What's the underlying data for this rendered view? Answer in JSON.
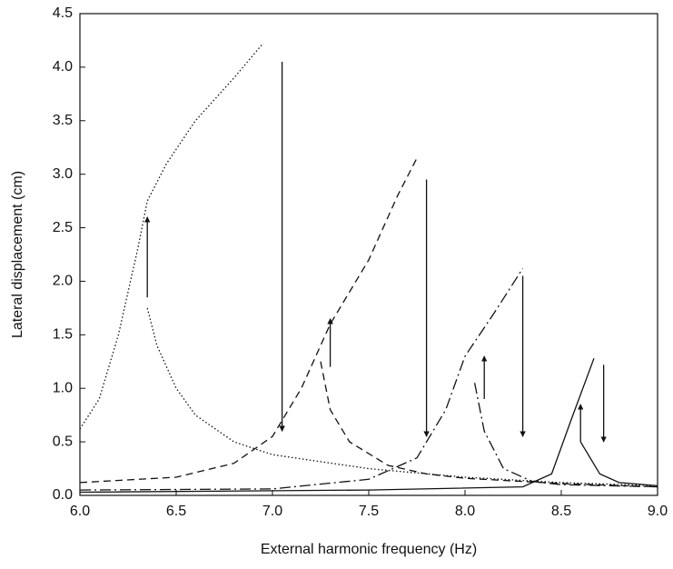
{
  "chart_data": {
    "type": "line",
    "x_label": "External harmonic frequency (Hz)",
    "y_label": "Lateral displacement (cm)",
    "xlim": [
      6.0,
      9.0
    ],
    "ylim": [
      0.0,
      4.5
    ],
    "xticks": [
      {
        "value": 6.0,
        "label": "6.0"
      },
      {
        "value": 6.5,
        "label": "6.5"
      },
      {
        "value": 7.0,
        "label": "7.0"
      },
      {
        "value": 7.5,
        "label": "7.5"
      },
      {
        "value": 8.0,
        "label": "8.0"
      },
      {
        "value": 8.5,
        "label": "8.5"
      },
      {
        "value": 9.0,
        "label": "9.0"
      }
    ],
    "yticks": [
      {
        "value": 0.0,
        "label": "0.0"
      },
      {
        "value": 0.5,
        "label": "0.5"
      },
      {
        "value": 1.0,
        "label": "1.0"
      },
      {
        "value": 1.5,
        "label": "1.5"
      },
      {
        "value": 2.0,
        "label": "2.0"
      },
      {
        "value": 2.5,
        "label": "2.5"
      },
      {
        "value": 3.0,
        "label": "3.0"
      },
      {
        "value": 3.5,
        "label": "3.5"
      },
      {
        "value": 4.0,
        "label": "4.0"
      },
      {
        "value": 4.5,
        "label": "4.5"
      }
    ],
    "series": [
      {
        "color": "#111111",
        "dash": "1.5,2.5",
        "x": [
          6.0,
          6.1,
          6.2,
          6.3,
          6.35,
          6.45,
          6.6,
          6.8,
          6.95
        ],
        "values": [
          0.62,
          0.9,
          1.5,
          2.3,
          2.75,
          3.1,
          3.5,
          3.9,
          4.22
        ]
      },
      {
        "color": "#111111",
        "dash": "1.5,2.5",
        "x": [
          6.35,
          6.4,
          6.5,
          6.6,
          6.8,
          7.0,
          7.5,
          8.0,
          8.5,
          9.0
        ],
        "values": [
          1.75,
          1.4,
          1.0,
          0.75,
          0.5,
          0.38,
          0.25,
          0.17,
          0.12,
          0.09
        ]
      },
      {
        "color": "#111111",
        "dash": "8,5",
        "x": [
          6.0,
          6.5,
          6.8,
          7.0,
          7.15,
          7.3,
          7.5,
          7.65,
          7.75
        ],
        "values": [
          0.12,
          0.17,
          0.3,
          0.55,
          1.0,
          1.6,
          2.2,
          2.8,
          3.15
        ]
      },
      {
        "color": "#111111",
        "dash": "8,5",
        "x": [
          7.25,
          7.3,
          7.4,
          7.6,
          7.8,
          8.0,
          8.5,
          9.0
        ],
        "values": [
          1.25,
          0.8,
          0.5,
          0.28,
          0.2,
          0.16,
          0.11,
          0.08
        ]
      },
      {
        "color": "#111111",
        "dash": "12,4,2,4",
        "x": [
          6.0,
          7.0,
          7.5,
          7.75,
          7.9,
          8.0,
          8.15,
          8.3
        ],
        "values": [
          0.05,
          0.06,
          0.15,
          0.35,
          0.8,
          1.3,
          1.7,
          2.12
        ]
      },
      {
        "color": "#111111",
        "dash": "12,4,2,4",
        "x": [
          8.05,
          8.1,
          8.2,
          8.35,
          8.5,
          9.0
        ],
        "values": [
          1.05,
          0.6,
          0.25,
          0.13,
          0.1,
          0.08
        ]
      },
      {
        "color": "#111111",
        "dash": "none",
        "x": [
          6.0,
          7.5,
          8.3,
          8.45,
          8.55,
          8.67
        ],
        "values": [
          0.03,
          0.05,
          0.08,
          0.2,
          0.7,
          1.28
        ]
      },
      {
        "color": "#111111",
        "dash": "none",
        "x": [
          8.6,
          8.7,
          8.8,
          9.0
        ],
        "values": [
          0.5,
          0.2,
          0.12,
          0.09
        ]
      }
    ],
    "arrows": [
      {
        "x": 6.35,
        "from": 1.85,
        "to": 2.6
      },
      {
        "x": 7.05,
        "from": 4.05,
        "to": 0.6
      },
      {
        "x": 7.3,
        "from": 1.2,
        "to": 1.65
      },
      {
        "x": 7.8,
        "from": 2.95,
        "to": 0.55
      },
      {
        "x": 8.1,
        "from": 0.9,
        "to": 1.3
      },
      {
        "x": 8.3,
        "from": 2.05,
        "to": 0.55
      },
      {
        "x": 8.6,
        "from": 0.5,
        "to": 0.85
      },
      {
        "x": 8.72,
        "from": 1.22,
        "to": 0.5
      }
    ]
  }
}
